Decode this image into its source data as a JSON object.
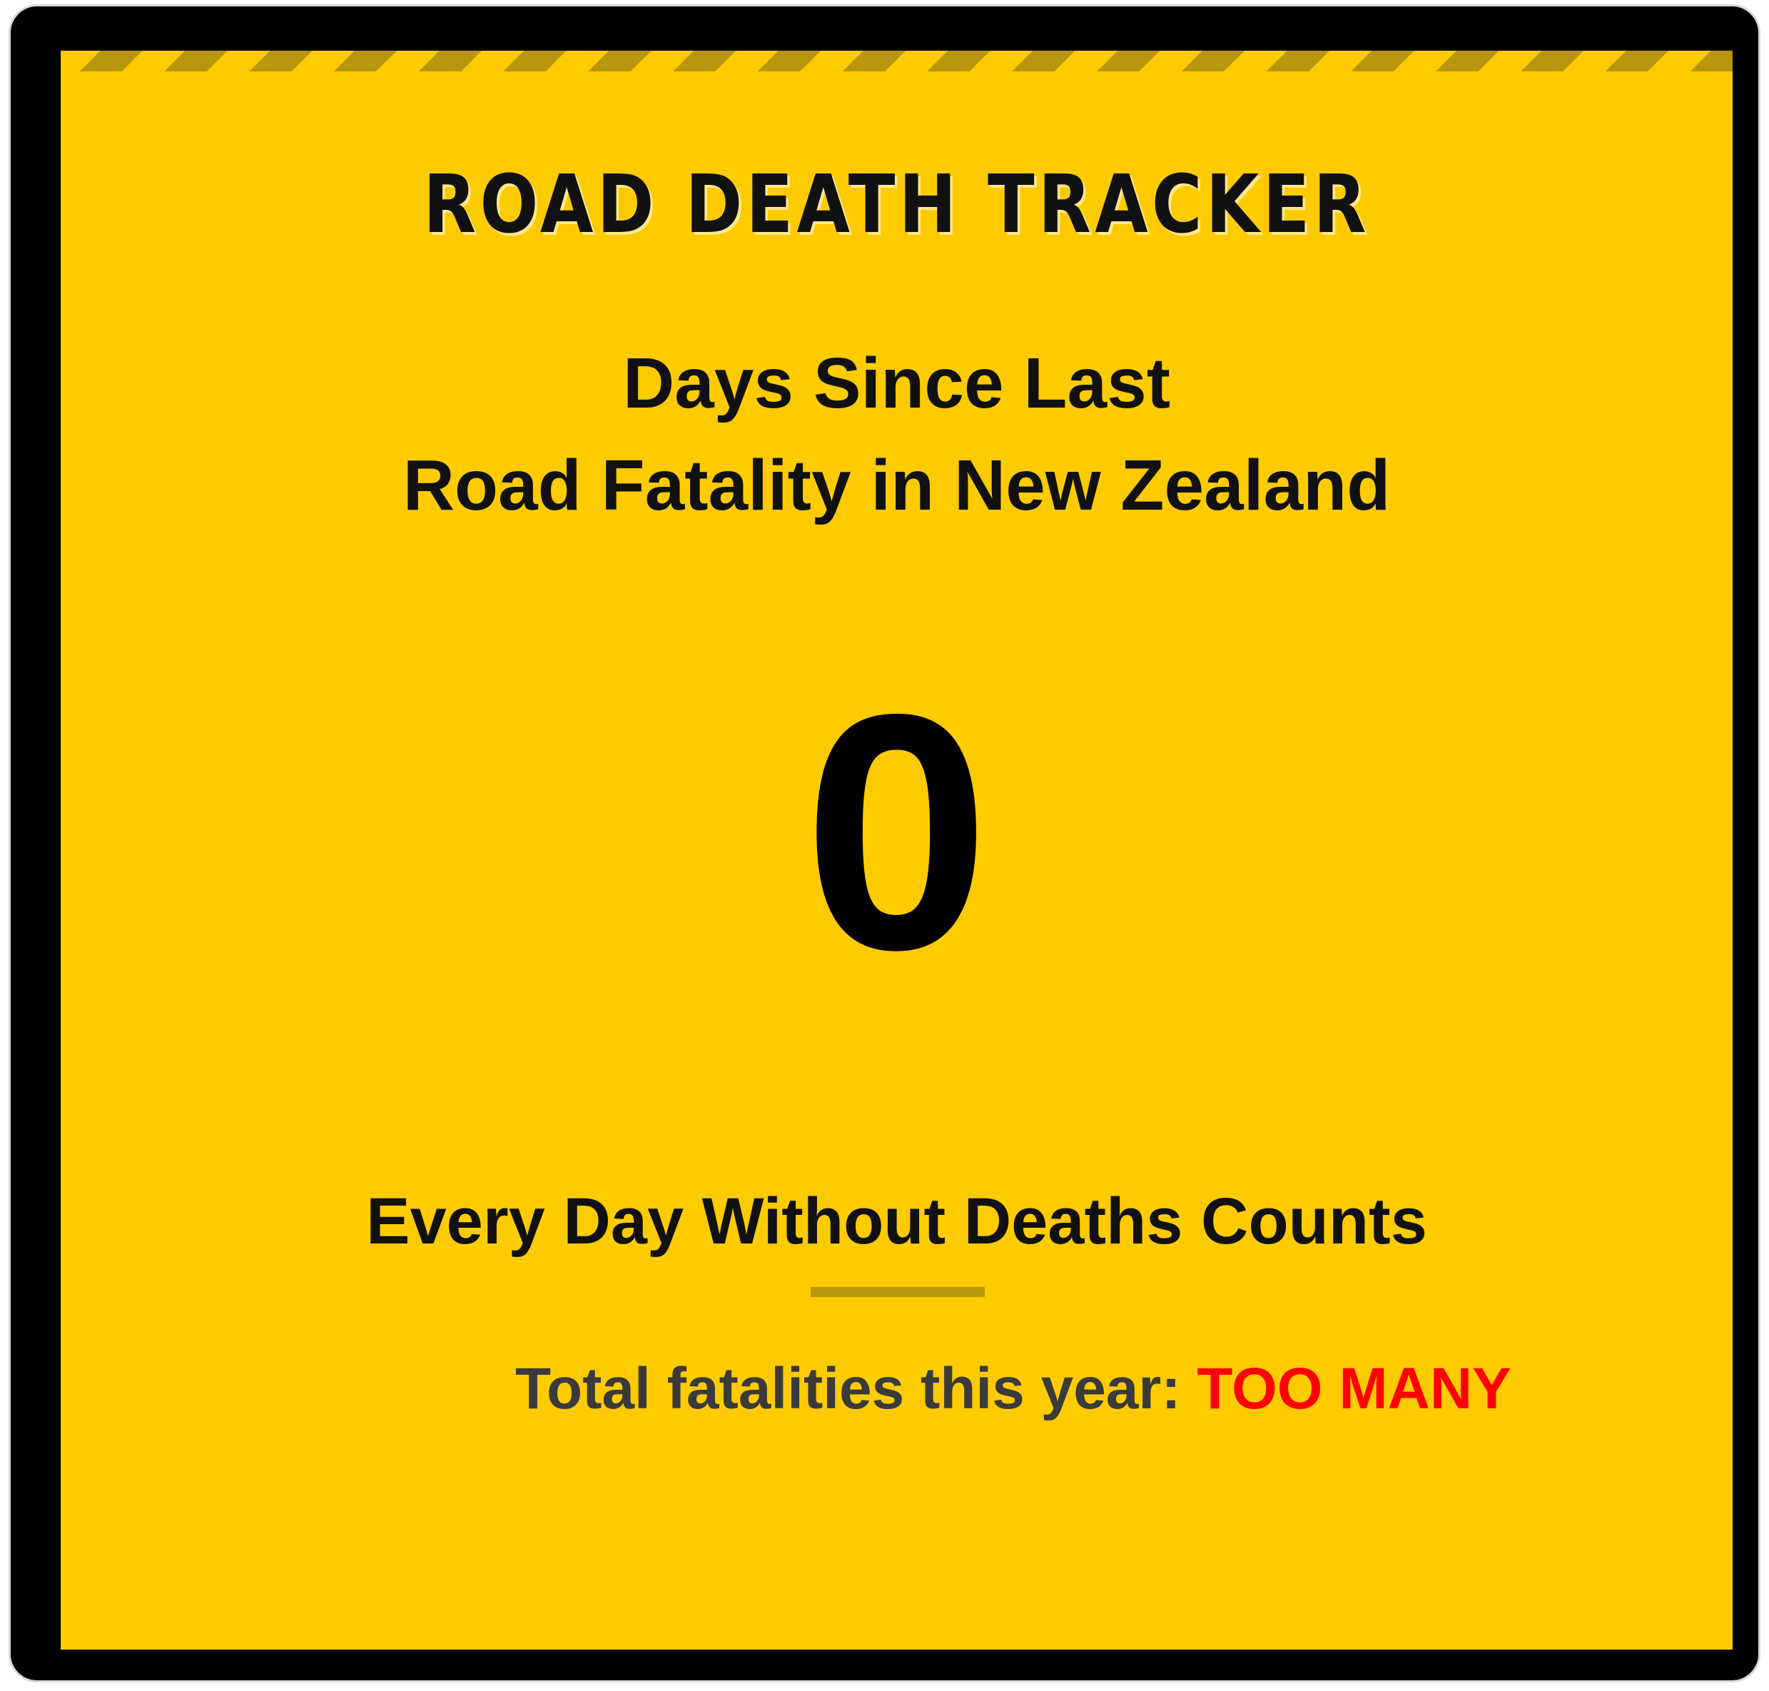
{
  "header": {
    "title": "ROAD DEATH TRACKER"
  },
  "subtitle": {
    "line1": "Days Since Last",
    "line2": "Road Fatality in New Zealand"
  },
  "counter": {
    "days": "0"
  },
  "tagline": "Every Day Without Deaths Counts",
  "total": {
    "label": "Total fatalities this year:",
    "value": "TOO MANY"
  },
  "colors": {
    "panel": "#fecb00",
    "frame": "#000000",
    "stripe": "#b8960b",
    "accent": "#ff0000"
  }
}
